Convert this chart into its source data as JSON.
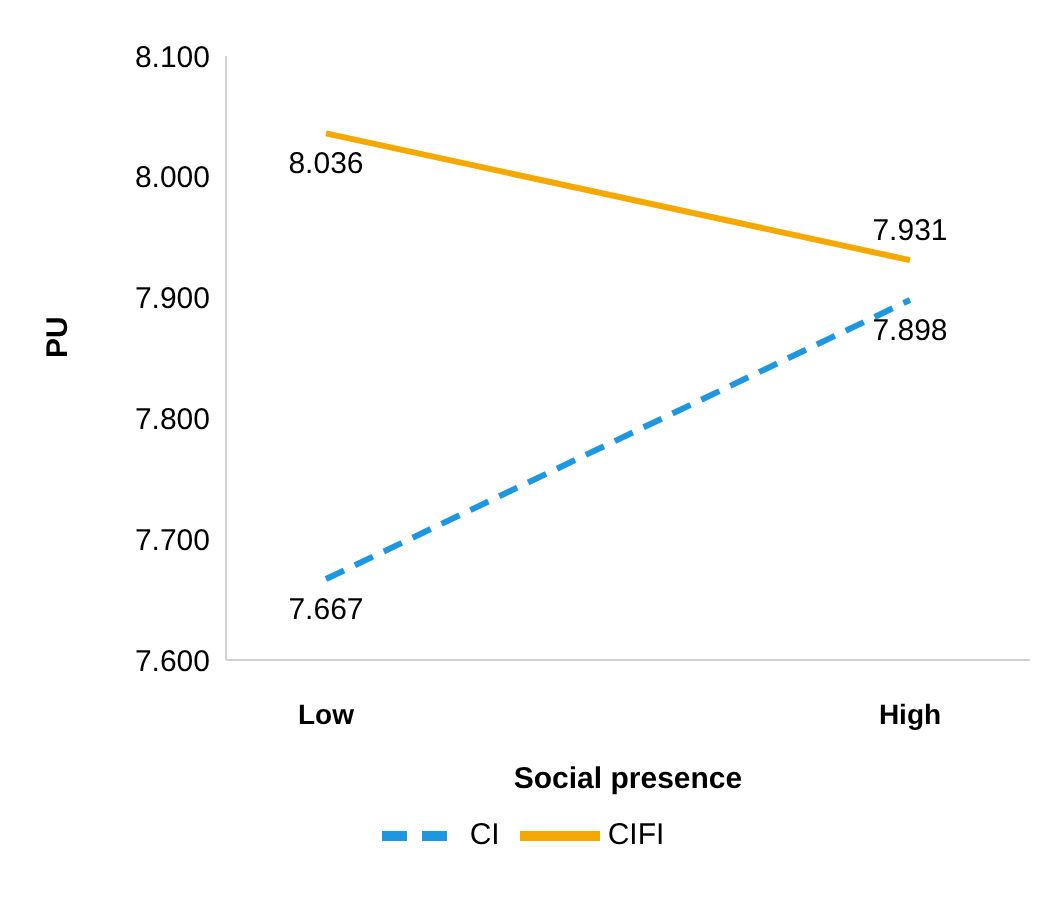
{
  "chart_data": {
    "type": "line",
    "xlabel": "Social presence",
    "ylabel": "PU",
    "categories": [
      "Low",
      "High"
    ],
    "series": [
      {
        "name": "CI",
        "color": "#1e96e0",
        "line_style": "dashed",
        "values": [
          7.667,
          7.898
        ]
      },
      {
        "name": "CIFI",
        "color": "#f5a800",
        "line_style": "solid",
        "values": [
          8.036,
          7.931
        ]
      }
    ],
    "ylim": [
      7.6,
      8.1
    ],
    "yticks": [
      {
        "value": 7.6,
        "label": "7.600"
      },
      {
        "value": 7.7,
        "label": "7.700"
      },
      {
        "value": 7.8,
        "label": "7.800"
      },
      {
        "value": 7.9,
        "label": "7.900"
      },
      {
        "value": 8.0,
        "label": "8.000"
      },
      {
        "value": 8.1,
        "label": "8.100"
      }
    ],
    "grid": false,
    "legend": "bottom",
    "marker": "none",
    "data_labels": true
  }
}
